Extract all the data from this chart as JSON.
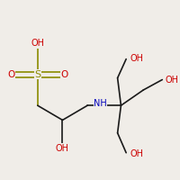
{
  "bg_color": "#f0ede8",
  "bond_color": "#1a1a1a",
  "bond_lw": 1.2,
  "atom_colors": {
    "S": "#8b8b00",
    "O": "#cc0000",
    "N": "#0000bb",
    "C": "#1a1a1a"
  },
  "figsize": [
    2.0,
    2.0
  ],
  "dpi": 100,
  "xlim": [
    0.0,
    1.0
  ],
  "ylim": [
    0.05,
    1.05
  ],
  "label_fs": 7.0,
  "S_fs": 8.0
}
